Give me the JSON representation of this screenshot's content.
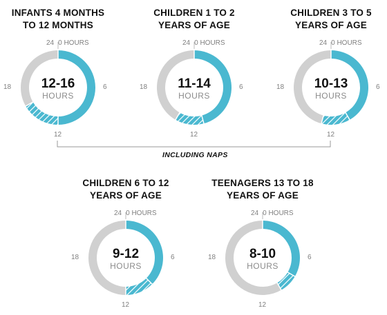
{
  "colors": {
    "sleep": "#4ab8d0",
    "awake": "#d0d0d0",
    "hatch_bg": "#e8f6f9"
  },
  "chart_data": [
    {
      "type": "pie",
      "title": [
        "INFANTS 4 MONTHS",
        "TO 12 MONTHS"
      ],
      "range": [
        12,
        16
      ],
      "value_label": "12-16",
      "unit": "HOURS",
      "axis_labels": {
        "top": "24 | 0 HOURS",
        "right": "6",
        "bottom": "12",
        "left": "18"
      }
    },
    {
      "type": "pie",
      "title": [
        "CHILDREN 1 TO 2",
        "YEARS OF AGE"
      ],
      "range": [
        11,
        14
      ],
      "value_label": "11-14",
      "unit": "HOURS",
      "axis_labels": {
        "top": "24 | 0 HOURS",
        "right": "6",
        "bottom": "12",
        "left": "18"
      }
    },
    {
      "type": "pie",
      "title": [
        "CHILDREN 3 TO 5",
        "YEARS OF AGE"
      ],
      "range": [
        10,
        13
      ],
      "value_label": "10-13",
      "unit": "HOURS",
      "axis_labels": {
        "top": "24 | 0 HOURS",
        "right": "6",
        "bottom": "12",
        "left": "18"
      }
    },
    {
      "type": "pie",
      "title": [
        "CHILDREN 6 TO 12",
        "YEARS OF AGE"
      ],
      "range": [
        9,
        12
      ],
      "value_label": "9-12",
      "unit": "HOURS",
      "axis_labels": {
        "top": "24 | 0 HOURS",
        "right": "6",
        "bottom": "12",
        "left": "18"
      }
    },
    {
      "type": "pie",
      "title": [
        "TEENAGERS 13 TO 18",
        "YEARS OF AGE"
      ],
      "range": [
        8,
        10
      ],
      "value_label": "8-10",
      "unit": "HOURS",
      "axis_labels": {
        "top": "24 | 0 HOURS",
        "right": "6",
        "bottom": "12",
        "left": "18"
      }
    }
  ],
  "bracket_label": "INCLUDING NAPS"
}
